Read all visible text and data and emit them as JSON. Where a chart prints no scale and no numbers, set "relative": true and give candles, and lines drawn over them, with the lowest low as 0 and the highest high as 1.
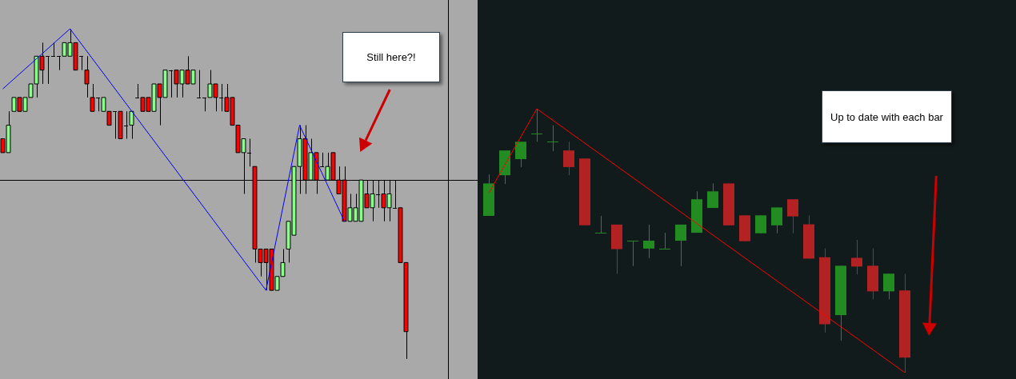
{
  "chart_data": [
    {
      "type": "candlestick",
      "relative": true,
      "color": "#000000",
      "categories": [
        null,
        null,
        null,
        null,
        null,
        null,
        null,
        null,
        null,
        null,
        null,
        null,
        null,
        null,
        null,
        null,
        null,
        null,
        null,
        null,
        null,
        null,
        null,
        null,
        null,
        null,
        null,
        null,
        null,
        null,
        null,
        null,
        null,
        null,
        null,
        null,
        null,
        null,
        null,
        null,
        null,
        null,
        null,
        null,
        null,
        null,
        null,
        null,
        null,
        null,
        null,
        null,
        null,
        null,
        null,
        null,
        null,
        null,
        null,
        null,
        null,
        null,
        null,
        null,
        null,
        null,
        null,
        null,
        null,
        null,
        null,
        null,
        null
      ],
      "ohlc": [
        [
          0.667,
          0.667,
          0.625,
          0.625
        ],
        [
          0.625,
          0.75,
          0.625,
          0.708
        ],
        [
          0.75,
          0.792,
          0.75,
          0.792
        ],
        [
          0.792,
          0.792,
          0.75,
          0.75
        ],
        [
          0.75,
          0.792,
          0.75,
          0.792
        ],
        [
          0.792,
          0.833,
          0.792,
          0.833
        ],
        [
          0.833,
          0.917,
          0.792,
          0.917
        ],
        [
          0.917,
          0.958,
          0.833,
          0.875
        ],
        [
          0.917,
          0.917,
          0.833,
          0.917
        ],
        [
          0.917,
          0.958,
          0.917,
          0.917
        ],
        [
          0.917,
          0.917,
          0.875,
          0.917
        ],
        [
          0.917,
          0.958,
          0.917,
          0.958
        ],
        [
          0.917,
          1,
          0.917,
          0.958
        ],
        [
          0.958,
          0.958,
          0.875,
          0.875
        ],
        [
          0.917,
          0.917,
          0.875,
          0.917
        ],
        [
          0.875,
          0.917,
          0.792,
          0.833
        ],
        [
          0.792,
          0.833,
          0.75,
          0.75
        ],
        [
          0.792,
          0.792,
          0.75,
          0.792
        ],
        [
          0.75,
          0.792,
          0.75,
          0.792
        ],
        [
          0.75,
          0.75,
          0.708,
          0.708
        ],
        [
          0.75,
          0.75,
          0.667,
          0.75
        ],
        [
          0.75,
          0.75,
          0.667,
          0.667
        ],
        [
          0.708,
          0.75,
          0.667,
          0.708
        ],
        [
          0.708,
          0.75,
          0.667,
          0.75
        ],
        [
          0.792,
          0.833,
          0.792,
          0.792
        ],
        [
          0.792,
          0.792,
          0.75,
          0.75
        ],
        [
          0.792,
          0.792,
          0.75,
          0.75
        ],
        [
          0.75,
          0.833,
          0.75,
          0.833
        ],
        [
          0.833,
          0.833,
          0.708,
          0.792
        ],
        [
          0.792,
          0.875,
          0.792,
          0.875
        ],
        [
          0.875,
          0.875,
          0.792,
          0.875
        ],
        [
          0.875,
          0.875,
          0.792,
          0.833
        ],
        [
          0.833,
          0.875,
          0.792,
          0.875
        ],
        [
          0.875,
          0.917,
          0.833,
          0.833
        ],
        [
          0.833,
          0.875,
          0.833,
          0.875
        ],
        [
          0.792,
          0.875,
          0.792,
          0.792
        ],
        [
          0.792,
          0.792,
          0.75,
          0.792
        ],
        [
          0.792,
          0.875,
          0.792,
          0.833
        ],
        [
          0.833,
          0.833,
          0.75,
          0.792
        ],
        [
          0.792,
          0.833,
          0.75,
          0.792
        ],
        [
          0.792,
          0.833,
          0.75,
          0.75
        ],
        [
          0.792,
          0.792,
          0.708,
          0.708
        ],
        [
          0.708,
          0.708,
          0.625,
          0.625
        ],
        [
          0.625,
          0.667,
          0.5,
          0.667
        ],
        [
          0.625,
          0.667,
          0.583,
          0.625
        ],
        [
          0.583,
          0.583,
          0.292,
          0.333
        ],
        [
          0.333,
          0.333,
          0.25,
          0.292
        ],
        [
          0.333,
          0.333,
          0.208,
          0.292
        ],
        [
          0.333,
          0.333,
          0.208,
          0.208
        ],
        [
          0.208,
          0.25,
          0.208,
          0.25
        ],
        [
          0.25,
          0.333,
          0.25,
          0.292
        ],
        [
          0.333,
          0.417,
          0.292,
          0.417
        ],
        [
          0.375,
          0.583,
          0.375,
          0.583
        ],
        [
          0.583,
          0.708,
          0.5,
          0.667
        ],
        [
          0.667,
          0.708,
          0.5,
          0.542
        ],
        [
          0.542,
          0.667,
          0.542,
          0.625
        ],
        [
          0.625,
          0.625,
          0.5,
          0.542
        ],
        [
          0.583,
          0.625,
          0.583,
          0.583
        ],
        [
          0.542,
          0.625,
          0.542,
          0.583
        ],
        [
          0.625,
          0.625,
          0.542,
          0.542
        ],
        [
          0.542,
          0.583,
          0.5,
          0.5
        ],
        [
          0.542,
          0.583,
          0.417,
          0.417
        ],
        [
          0.417,
          0.5,
          0.417,
          0.458
        ],
        [
          0.417,
          0.5,
          0.417,
          0.458
        ],
        [
          0.417,
          0.542,
          0.417,
          0.542
        ],
        [
          0.5,
          0.542,
          0.458,
          0.458
        ],
        [
          0.458,
          0.542,
          0.417,
          0.5
        ],
        [
          0.5,
          0.542,
          0.458,
          0.5
        ],
        [
          0.5,
          0.542,
          0.417,
          0.458
        ],
        [
          0.458,
          0.542,
          0.417,
          0.5
        ],
        [
          0.458,
          0.542,
          0.458,
          0.458
        ],
        [
          0.458,
          0.458,
          0.292,
          0.292
        ],
        [
          0.292,
          0.292,
          0,
          0.083
        ]
      ],
      "colors": [
        "#ff0000",
        "#88ff88",
        "#88ff88",
        "#ff0000",
        "#88ff88",
        "#88ff88",
        "#88ff88",
        "#ff0000",
        "#000000",
        "#000000",
        "#000000",
        "#88ff88",
        "#88ff88",
        "#ff0000",
        "#000000",
        "#ff0000",
        "#ff0000",
        "#000000",
        "#88ff88",
        "#ff0000",
        "#000000",
        "#ff0000",
        "#000000",
        "#88ff88",
        "#000000",
        "#ff0000",
        "#ff0000",
        "#88ff88",
        "#ff0000",
        "#88ff88",
        "#000000",
        "#ff0000",
        "#88ff88",
        "#ff0000",
        "#88ff88",
        "#000000",
        "#000000",
        "#88ff88",
        "#ff0000",
        "#000000",
        "#ff0000",
        "#ff0000",
        "#ff0000",
        "#88ff88",
        "#000000",
        "#ff0000",
        "#ff0000",
        "#ff0000",
        "#ff0000",
        "#88ff88",
        "#88ff88",
        "#88ff88",
        "#88ff88",
        "#88ff88",
        "#ff0000",
        "#88ff88",
        "#ff0000",
        "#000000",
        "#88ff88",
        "#ff0000",
        "#ff0000",
        "#ff0000",
        "#88ff88",
        "#88ff88",
        "#88ff88",
        "#ff0000",
        "#88ff88",
        "#000000",
        "#ff0000",
        "#88ff88",
        "#000000",
        "#ff0000",
        "#ff0000"
      ],
      "series": [
        {
          "type": "line",
          "color": "#0000ff",
          "values": [
            0.818,
            null,
            null,
            null,
            null,
            null,
            null,
            null,
            null,
            null,
            null,
            null,
            1,
            null,
            null,
            null,
            null,
            null,
            null,
            null,
            null,
            null,
            null,
            null,
            null,
            null,
            null,
            null,
            null,
            null,
            null,
            null,
            null,
            null,
            null,
            null,
            null,
            null,
            null,
            null,
            null,
            null,
            null,
            null,
            null,
            null,
            null,
            0.208,
            null,
            null,
            null,
            null,
            null,
            0.708,
            null,
            null,
            null,
            null,
            null,
            null,
            null,
            0.417,
            null,
            null,
            null,
            null,
            null,
            null,
            null,
            null,
            null,
            null,
            null
          ]
        }
      ],
      "ref_lines": [
        {
          "axis": "y",
          "value": 0.542,
          "color": "#000000"
        }
      ],
      "annotations": [
        "Still here?!"
      ]
    },
    {
      "type": "candlestick",
      "relative": true,
      "categories": [
        null,
        null,
        null,
        null,
        null,
        null,
        null,
        null,
        null,
        null,
        null,
        null,
        null,
        null,
        null,
        null,
        null,
        null,
        null,
        null,
        null,
        null,
        null,
        null,
        null,
        null,
        null
      ],
      "ohlc": [
        [
          0.594,
          0.751,
          0.594,
          0.717
        ],
        [
          0.748,
          0.842,
          0.715,
          0.842
        ],
        [
          0.809,
          0.875,
          0.779,
          0.875
        ],
        [
          0.905,
          1,
          0.875,
          0.905
        ],
        [
          0.875,
          0.937,
          0.839,
          0.875
        ],
        [
          0.842,
          0.875,
          0.748,
          0.779
        ],
        [
          0.811,
          0.811,
          0.558,
          0.558
        ],
        [
          0.53,
          0.594,
          0.53,
          0.53
        ],
        [
          0.561,
          0.561,
          0.374,
          0.468
        ],
        [
          0.5,
          0.5,
          0.404,
          0.5
        ],
        [
          0.47,
          0.561,
          0.434,
          0.5
        ],
        [
          0.47,
          0.53,
          0.47,
          0.47
        ],
        [
          0.5,
          0.561,
          0.404,
          0.561
        ],
        [
          0.53,
          0.687,
          0.53,
          0.657
        ],
        [
          0.624,
          0.717,
          0.624,
          0.687
        ],
        [
          0.717,
          0.717,
          0.558,
          0.558
        ],
        [
          0.596,
          0.596,
          0.498,
          0.498
        ],
        [
          0.528,
          0.596,
          0.528,
          0.596
        ],
        [
          0.558,
          0.626,
          0.528,
          0.626
        ],
        [
          0.657,
          0.657,
          0.528,
          0.592
        ],
        [
          0.562,
          0.596,
          0.432,
          0.432
        ],
        [
          0.437,
          0.471,
          0.152,
          0.183
        ],
        [
          0.218,
          0.405,
          0.121,
          0.405
        ],
        [
          0.435,
          0.503,
          0.372,
          0.402
        ],
        [
          0.405,
          0.471,
          0.278,
          0.308
        ],
        [
          0.308,
          0.375,
          0.278,
          0.375
        ],
        [
          0.311,
          0.374,
          0,
          0.057
        ]
      ],
      "colors": [
        "#228b22",
        "#228b22",
        "#228b22",
        "#228b22",
        "#228b22",
        "#b22222",
        "#b22222",
        "#228b22",
        "#b22222",
        "#228b22",
        "#228b22",
        "#228b22",
        "#228b22",
        "#228b22",
        "#228b22",
        "#b22222",
        "#b22222",
        "#228b22",
        "#228b22",
        "#b22222",
        "#b22222",
        "#b22222",
        "#228b22",
        "#b22222",
        "#b22222",
        "#228b22",
        "#b22222"
      ],
      "series": [
        {
          "type": "line",
          "color": "#ff0000",
          "values": [
            0.68,
            null,
            null,
            1,
            null,
            null,
            null,
            null,
            null,
            null,
            null,
            null,
            null,
            null,
            null,
            null,
            null,
            null,
            null,
            null,
            null,
            null,
            null,
            null,
            null,
            null,
            0
          ]
        }
      ],
      "annotations": [
        "Up to date with each bar"
      ]
    }
  ]
}
